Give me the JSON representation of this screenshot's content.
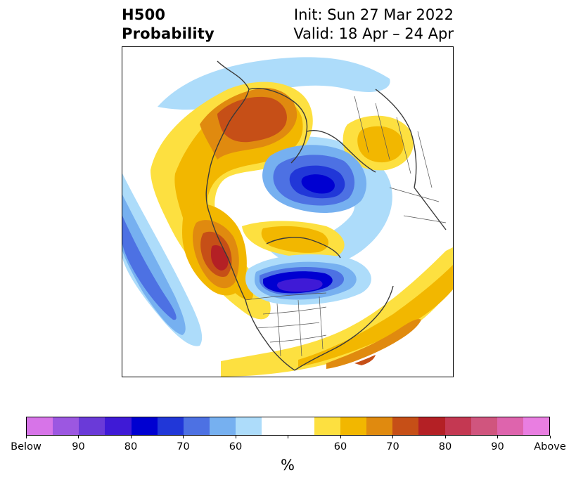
{
  "title": {
    "line1_left": "H500",
    "line2_left": "Probability",
    "line1_right": "Init: Sun 27 Mar 2022",
    "line2_right": "Valid: 18 Apr – 24 Apr"
  },
  "map": {
    "projection": "north-polar-stereographic",
    "field": "500 hPa height anomaly probability"
  },
  "colorbar": {
    "label": "%",
    "colors": [
      "#d774e8",
      "#9c57e1",
      "#6a3ad8",
      "#3f1ad6",
      "#0000d1",
      "#2137d8",
      "#4d71e3",
      "#76b0f0",
      "#addcfa",
      "#ffffff",
      "#ffffff",
      "#fde040",
      "#f2b700",
      "#e08a0f",
      "#c64f17",
      "#b42025",
      "#c43852",
      "#d0557e",
      "#de64ad",
      "#e97ee1"
    ],
    "ticks": [
      "Below",
      "90",
      "80",
      "70",
      "60",
      "",
      "60",
      "70",
      "80",
      "90",
      "Above"
    ]
  },
  "palette": {
    "coast": "#3a3a3a",
    "border": "#555555"
  }
}
